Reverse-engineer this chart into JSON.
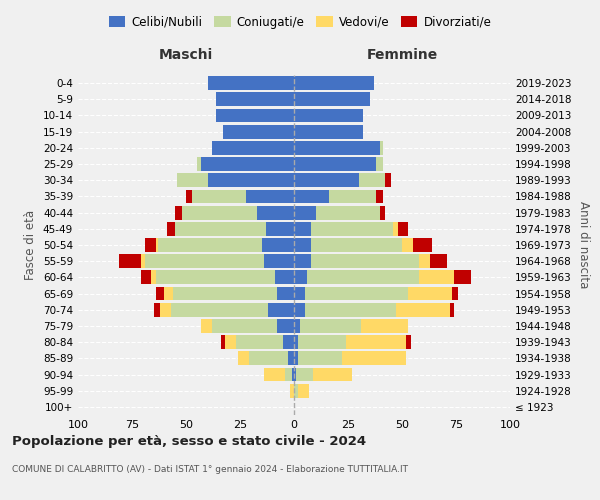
{
  "age_groups": [
    "100+",
    "95-99",
    "90-94",
    "85-89",
    "80-84",
    "75-79",
    "70-74",
    "65-69",
    "60-64",
    "55-59",
    "50-54",
    "45-49",
    "40-44",
    "35-39",
    "30-34",
    "25-29",
    "20-24",
    "15-19",
    "10-14",
    "5-9",
    "0-4"
  ],
  "birth_years": [
    "≤ 1923",
    "1924-1928",
    "1929-1933",
    "1934-1938",
    "1939-1943",
    "1944-1948",
    "1949-1953",
    "1954-1958",
    "1959-1963",
    "1964-1968",
    "1969-1973",
    "1974-1978",
    "1979-1983",
    "1984-1988",
    "1989-1993",
    "1994-1998",
    "1999-2003",
    "2004-2008",
    "2009-2013",
    "2014-2018",
    "2019-2023"
  ],
  "colors": {
    "celibe": "#4472C4",
    "coniugato": "#c5d9a0",
    "vedovo": "#FFD966",
    "divorziato": "#C00000"
  },
  "maschi": {
    "celibe": [
      0,
      0,
      1,
      3,
      5,
      8,
      12,
      8,
      9,
      14,
      15,
      13,
      17,
      22,
      40,
      43,
      38,
      33,
      36,
      36,
      40
    ],
    "coniugato": [
      0,
      0,
      3,
      18,
      22,
      30,
      45,
      48,
      55,
      55,
      48,
      42,
      35,
      25,
      14,
      2,
      0,
      0,
      0,
      0,
      0
    ],
    "vedovo": [
      0,
      2,
      10,
      5,
      5,
      5,
      5,
      4,
      2,
      2,
      1,
      0,
      0,
      0,
      0,
      0,
      0,
      0,
      0,
      0,
      0
    ],
    "divorziato": [
      0,
      0,
      0,
      0,
      2,
      0,
      3,
      4,
      5,
      10,
      5,
      4,
      3,
      3,
      0,
      0,
      0,
      0,
      0,
      0,
      0
    ]
  },
  "femmine": {
    "nubile": [
      0,
      0,
      1,
      2,
      2,
      3,
      5,
      5,
      6,
      8,
      8,
      8,
      10,
      16,
      30,
      38,
      40,
      32,
      32,
      35,
      37
    ],
    "coniugata": [
      0,
      2,
      8,
      20,
      22,
      28,
      42,
      48,
      52,
      50,
      42,
      38,
      30,
      22,
      12,
      3,
      1,
      0,
      0,
      0,
      0
    ],
    "vedova": [
      0,
      5,
      18,
      30,
      28,
      22,
      25,
      20,
      16,
      5,
      5,
      2,
      0,
      0,
      0,
      0,
      0,
      0,
      0,
      0,
      0
    ],
    "divorziata": [
      0,
      0,
      0,
      0,
      2,
      0,
      2,
      3,
      8,
      8,
      9,
      5,
      2,
      3,
      3,
      0,
      0,
      0,
      0,
      0,
      0
    ]
  },
  "xlim": 100,
  "title": "Popolazione per età, sesso e stato civile - 2024",
  "subtitle": "COMUNE DI CALABRITTO (AV) - Dati ISTAT 1° gennaio 2024 - Elaborazione TUTTITALIA.IT",
  "xlabel_left": "Maschi",
  "xlabel_right": "Femmine",
  "ylabel_left": "Fasce di età",
  "ylabel_right": "Anni di nascita",
  "bg_color": "#f0f0f0"
}
